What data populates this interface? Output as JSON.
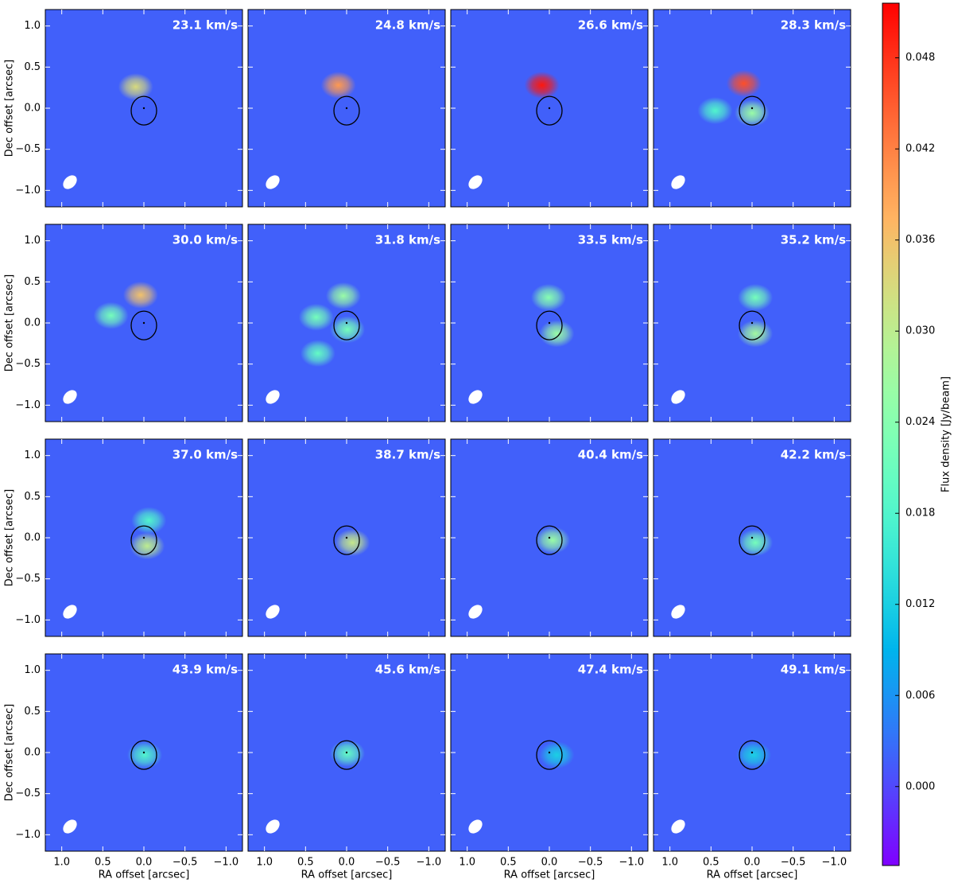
{
  "chart_data": {
    "type": "heatmap",
    "xlabel": "RA offset [arcsec]",
    "ylabel": "Dec offset [arcsec]",
    "xlim": [
      1.2,
      -1.2
    ],
    "ylim": [
      -1.2,
      1.2
    ],
    "xticks": [
      {
        "value": 1,
        "label": "1.0"
      },
      0.5,
      {
        "value": 0,
        "label": "0.0"
      },
      {
        "value": -0.5,
        "label": "−0.5"
      },
      {
        "value": -1,
        "label": "−1.0"
      }
    ],
    "yticks": [
      {
        "value": -1,
        "label": "−1.0"
      },
      {
        "value": -0.5,
        "label": "−0.5"
      },
      {
        "value": 0,
        "label": "0.0"
      },
      0.5,
      {
        "value": 1,
        "label": "1.0"
      }
    ],
    "noise_level": 0.0018,
    "colorbar": {
      "label": "Flux density [Jy/beam]",
      "lim": [
        -0.0052,
        0.0516
      ],
      "ticks": [
        {
          "value": 0,
          "label": "0.000"
        },
        0.006,
        0.012,
        0.018,
        0.024,
        {
          "value": 0.03,
          "label": "0.030"
        },
        0.036,
        0.042,
        0.048
      ]
    },
    "panels": [
      {
        "label": "23.1 km/s",
        "components": [
          {
            "x": 0.1,
            "y": 0.26,
            "peak": 0.033
          }
        ]
      },
      {
        "label": "24.8 km/s",
        "components": [
          {
            "x": 0.1,
            "y": 0.28,
            "peak": 0.04
          }
        ]
      },
      {
        "label": "26.6 km/s",
        "components": [
          {
            "x": 0.09,
            "y": 0.28,
            "peak": 0.05
          }
        ]
      },
      {
        "label": "28.3 km/s",
        "components": [
          {
            "x": 0.1,
            "y": 0.3,
            "peak": 0.046
          },
          {
            "x": 0,
            "y": -0.06,
            "peak": 0.026
          },
          {
            "x": 0.45,
            "y": -0.03,
            "peak": 0.018
          }
        ]
      },
      {
        "label": "30.0 km/s",
        "components": [
          {
            "x": 0.04,
            "y": 0.34,
            "peak": 0.036
          },
          {
            "x": 0.4,
            "y": 0.09,
            "peak": 0.022
          }
        ]
      },
      {
        "label": "31.8 km/s",
        "components": [
          {
            "x": 0.04,
            "y": 0.33,
            "peak": 0.026
          },
          {
            "x": 0.37,
            "y": 0.07,
            "peak": 0.022
          },
          {
            "x": 0.35,
            "y": -0.37,
            "peak": 0.02
          },
          {
            "x": -0.01,
            "y": -0.08,
            "peak": 0.022
          }
        ]
      },
      {
        "label": "33.5 km/s",
        "components": [
          {
            "x": 0.01,
            "y": 0.31,
            "peak": 0.024
          },
          {
            "x": -0.09,
            "y": -0.13,
            "peak": 0.026
          }
        ]
      },
      {
        "label": "35.2 km/s",
        "components": [
          {
            "x": -0.04,
            "y": 0.31,
            "peak": 0.022
          },
          {
            "x": -0.04,
            "y": -0.13,
            "peak": 0.027
          }
        ]
      },
      {
        "label": "37.0 km/s",
        "components": [
          {
            "x": -0.06,
            "y": 0.21,
            "peak": 0.018
          },
          {
            "x": -0.04,
            "y": -0.1,
            "peak": 0.03
          }
        ]
      },
      {
        "label": "38.7 km/s",
        "components": [
          {
            "x": -0.07,
            "y": -0.06,
            "peak": 0.031
          }
        ]
      },
      {
        "label": "40.4 km/s",
        "components": [
          {
            "x": -0.04,
            "y": -0.03,
            "peak": 0.026
          }
        ]
      },
      {
        "label": "42.2 km/s",
        "components": [
          {
            "x": -0.04,
            "y": -0.06,
            "peak": 0.022
          }
        ]
      },
      {
        "label": "43.9 km/s",
        "components": [
          {
            "x": -0.01,
            "y": -0.03,
            "peak": 0.018
          }
        ]
      },
      {
        "label": "45.6 km/s",
        "components": [
          {
            "x": -0.01,
            "y": -0.01,
            "peak": 0.02
          }
        ]
      },
      {
        "label": "47.4 km/s",
        "components": [
          {
            "x": -0.09,
            "y": -0.03,
            "peak": 0.012
          }
        ]
      },
      {
        "label": "49.1 km/s",
        "components": [
          {
            "x": -0.02,
            "y": -0.03,
            "peak": 0.012
          }
        ]
      }
    ]
  }
}
